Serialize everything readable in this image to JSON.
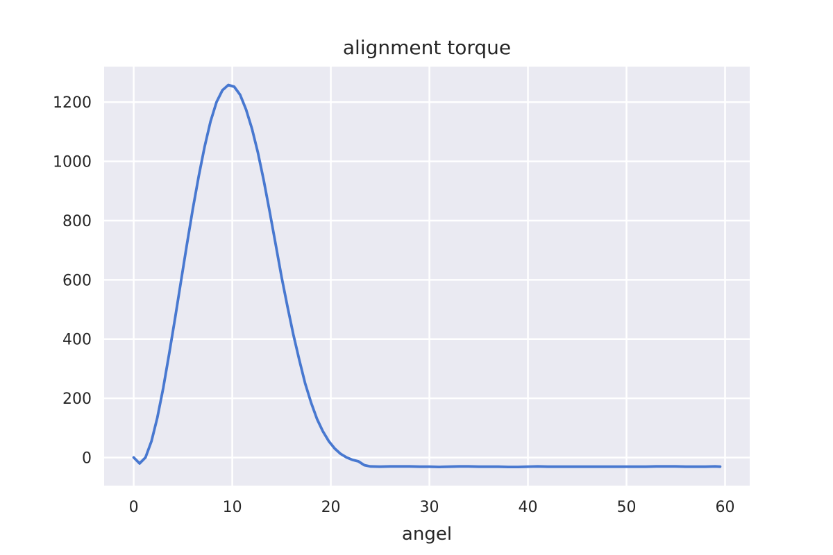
{
  "chart_data": {
    "type": "line",
    "title": "alignment torque",
    "xlabel": "angel",
    "ylabel": "",
    "xlim": [
      -3,
      62.5
    ],
    "ylim": [
      -95,
      1320
    ],
    "xticks": [
      0,
      10,
      20,
      30,
      40,
      50,
      60
    ],
    "yticks": [
      0,
      200,
      400,
      600,
      800,
      1000,
      1200
    ],
    "grid": true,
    "series": [
      {
        "color": "#4878d0",
        "x": [
          0,
          0.6,
          1.2,
          1.8,
          2.4,
          3.0,
          3.6,
          4.2,
          4.8,
          5.4,
          6.0,
          6.6,
          7.2,
          7.8,
          8.4,
          9.0,
          9.6,
          10.2,
          10.8,
          11.4,
          12.0,
          12.6,
          13.2,
          13.8,
          14.4,
          15.0,
          15.6,
          16.2,
          16.8,
          17.4,
          18.0,
          18.6,
          19.2,
          19.8,
          20.4,
          21.0,
          21.6,
          22.2,
          22.8,
          23.4,
          24.0,
          25.0,
          26.0,
          27.0,
          28.0,
          29.0,
          30.0,
          31.0,
          32.0,
          33.0,
          34.0,
          35.0,
          36.0,
          37.0,
          38.0,
          39.0,
          40.0,
          41.0,
          42.0,
          43.0,
          44.0,
          45.0,
          46.0,
          47.0,
          48.0,
          49.0,
          50.0,
          51.0,
          52.0,
          53.0,
          54.0,
          55.0,
          56.0,
          57.0,
          58.0,
          59.0,
          59.5
        ],
        "y": [
          0,
          -20,
          0,
          55,
          135,
          235,
          350,
          470,
          595,
          720,
          840,
          950,
          1050,
          1135,
          1200,
          1240,
          1258,
          1252,
          1225,
          1175,
          1110,
          1030,
          935,
          830,
          720,
          610,
          510,
          415,
          330,
          250,
          185,
          130,
          88,
          55,
          30,
          12,
          0,
          -8,
          -13,
          -26,
          -30,
          -31,
          -30,
          -30,
          -30,
          -31,
          -31,
          -32,
          -31,
          -30,
          -30,
          -31,
          -31,
          -31,
          -32,
          -32,
          -31,
          -30,
          -31,
          -31,
          -31,
          -31,
          -31,
          -31,
          -31,
          -31,
          -31,
          -31,
          -31,
          -30,
          -30,
          -30,
          -31,
          -31,
          -31,
          -30,
          -31
        ]
      }
    ]
  }
}
